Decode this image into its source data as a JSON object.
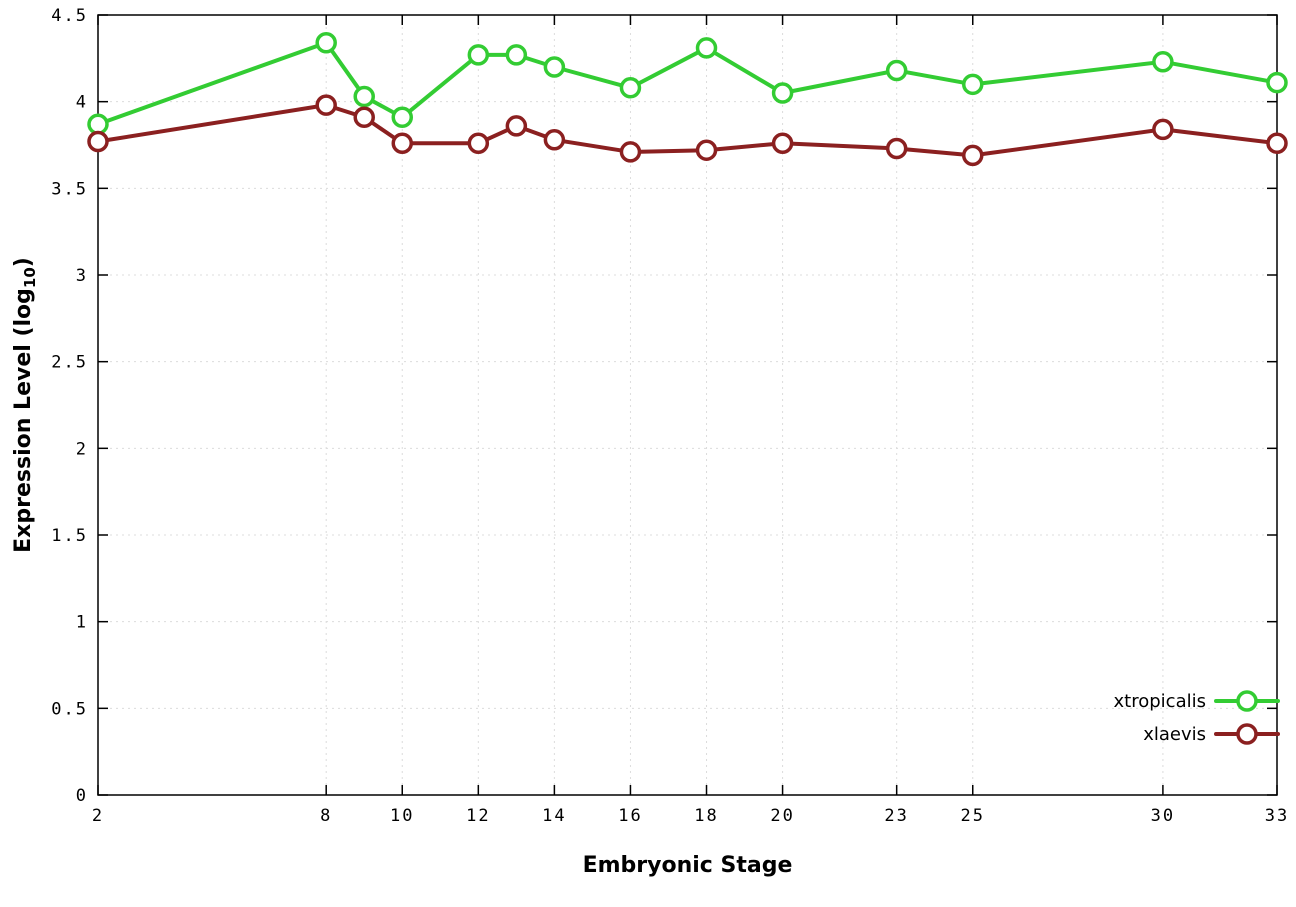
{
  "chart_data": {
    "type": "line",
    "title": "",
    "xlabel": "Embryonic Stage",
    "ylabel": "Expression Level (log10)",
    "ylabel_display": {
      "main": "Expression Level (log",
      "sub": "10",
      "close": ")"
    },
    "xlim": [
      2,
      33
    ],
    "ylim": [
      0,
      4.5
    ],
    "x_ticks": [
      2,
      8,
      10,
      12,
      14,
      16,
      18,
      20,
      23,
      25,
      30,
      33
    ],
    "y_ticks": [
      0,
      0.5,
      1,
      1.5,
      2,
      2.5,
      3,
      3.5,
      4,
      4.5
    ],
    "grid": true,
    "legend_position": "bottom-right",
    "x": [
      2,
      8,
      9,
      10,
      12,
      13,
      14,
      16,
      18,
      20,
      23,
      25,
      30,
      33
    ],
    "series": [
      {
        "name": "xtropicalis",
        "color": "#33cc33",
        "values": [
          3.87,
          4.34,
          4.03,
          3.91,
          4.27,
          4.27,
          4.2,
          4.08,
          4.31,
          4.05,
          4.18,
          4.1,
          4.23,
          4.11
        ]
      },
      {
        "name": "xlaevis",
        "color": "#8b2020",
        "values": [
          3.77,
          3.98,
          3.91,
          3.76,
          3.76,
          3.86,
          3.78,
          3.71,
          3.72,
          3.76,
          3.73,
          3.69,
          3.84,
          3.76
        ]
      }
    ],
    "marker": {
      "shape": "open-circle",
      "radius": 9,
      "stroke_width": 3.5,
      "fill": "#ffffff"
    },
    "line_width": 4,
    "colors": {
      "axis": "#000000",
      "grid": "#dcdcdc",
      "background": "#ffffff"
    }
  }
}
